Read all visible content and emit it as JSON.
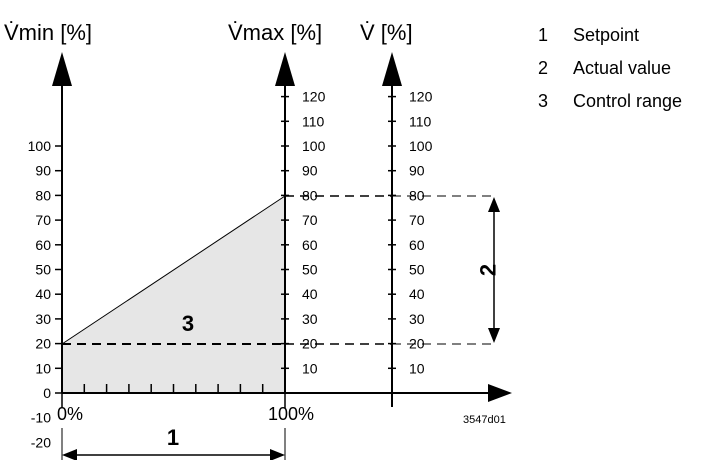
{
  "axes": {
    "vmin": {
      "title": "V̇min [%]",
      "ticks": [
        "100",
        "90",
        "80",
        "70",
        "60",
        "50",
        "40",
        "30",
        "20",
        "10",
        "0",
        "-10",
        "-20"
      ]
    },
    "vmax": {
      "title": "V̇max [%]",
      "ticks": [
        "120",
        "110",
        "100",
        "90",
        "80",
        "70",
        "60",
        "50",
        "40",
        "30",
        "20",
        "10"
      ]
    },
    "v": {
      "title": "V̇ [%]",
      "ticks": [
        "120",
        "110",
        "100",
        "90",
        "80",
        "70",
        "60",
        "50",
        "40",
        "30",
        "20",
        "10"
      ]
    },
    "x": {
      "start_label": "0%",
      "end_label": "100%"
    }
  },
  "regions": {
    "control_range_number": "3",
    "actual_value_number": "2",
    "setpoint_number": "1"
  },
  "drawing_code": "3547d01",
  "legend": [
    {
      "num": "1",
      "label": "Setpoint"
    },
    {
      "num": "2",
      "label": "Actual value"
    },
    {
      "num": "3",
      "label": "Control range"
    }
  ],
  "values": {
    "vmin_setting_percent": 20,
    "vmax_setting_percent": 80,
    "actual_low_percent": 20,
    "actual_high_percent": 80
  }
}
